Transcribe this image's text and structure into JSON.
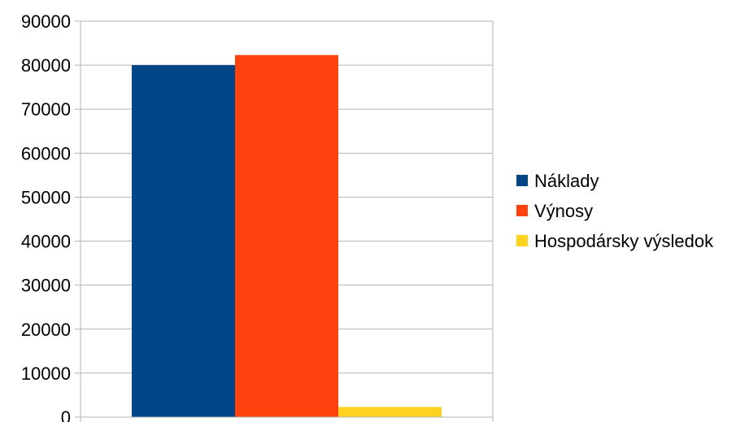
{
  "chart_data": {
    "type": "bar",
    "categories": [
      ""
    ],
    "series": [
      {
        "name": "Náklady",
        "values": [
          80000
        ],
        "color": "#004586"
      },
      {
        "name": "Výnosy",
        "values": [
          82300
        ],
        "color": "#ff420e"
      },
      {
        "name": "Hospodársky výsledok",
        "values": [
          2300
        ],
        "color": "#ffd320"
      }
    ],
    "title": "",
    "xlabel": "",
    "ylabel": "",
    "ylim": [
      0,
      90000
    ],
    "yticks": [
      "0",
      "10000",
      "20000",
      "30000",
      "40000",
      "50000",
      "60000",
      "70000",
      "80000",
      "90000"
    ],
    "grid": true,
    "legend_position": "right"
  }
}
